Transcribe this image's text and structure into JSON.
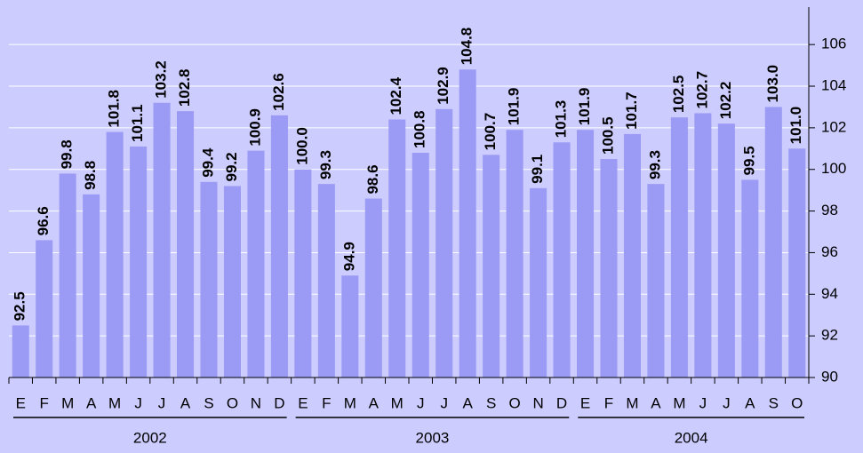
{
  "chart_data": {
    "type": "bar",
    "color": "#9b9bf5",
    "grid": true,
    "ylim": [
      90,
      107.8
    ],
    "yticks": [
      90,
      92,
      94,
      96,
      98,
      100,
      102,
      104,
      106
    ],
    "groups": [
      {
        "name": "2002",
        "categories": [
          "E",
          "F",
          "M",
          "A",
          "M",
          "J",
          "J",
          "A",
          "S",
          "O",
          "N",
          "D"
        ],
        "values": [
          92.5,
          96.6,
          99.8,
          98.8,
          101.8,
          101.1,
          103.2,
          102.8,
          99.4,
          99.2,
          100.9,
          102.6
        ],
        "value_labels": [
          "92.5",
          "96.6",
          "99.8",
          "98.8",
          "101.8",
          "101.1",
          "103.2",
          "102.8",
          "99.4",
          "99.2",
          "100.9",
          "102.6"
        ]
      },
      {
        "name": "2003",
        "categories": [
          "E",
          "F",
          "M",
          "A",
          "M",
          "J",
          "J",
          "A",
          "S",
          "O",
          "N",
          "D"
        ],
        "values": [
          100.0,
          99.3,
          94.9,
          98.6,
          102.4,
          100.8,
          102.9,
          104.8,
          100.7,
          101.9,
          99.1,
          101.3
        ],
        "value_labels": [
          "100.0",
          "99.3",
          "94.9",
          "98.6",
          "102.4",
          "100.8",
          "102.9",
          "104.8",
          "100.7",
          "101.9",
          "99.1",
          "101.3"
        ]
      },
      {
        "name": "2004",
        "categories": [
          "E",
          "F",
          "M",
          "A",
          "M",
          "J",
          "J",
          "A",
          "S",
          "O"
        ],
        "values": [
          101.9,
          100.5,
          101.7,
          99.3,
          102.5,
          102.7,
          102.2,
          99.5,
          103.0,
          101.0
        ],
        "value_labels": [
          "101.9",
          "100.5",
          "101.7",
          "99.3",
          "102.5",
          "102.7",
          "102.2",
          "99.5",
          "103.0",
          "101.0"
        ]
      }
    ]
  }
}
